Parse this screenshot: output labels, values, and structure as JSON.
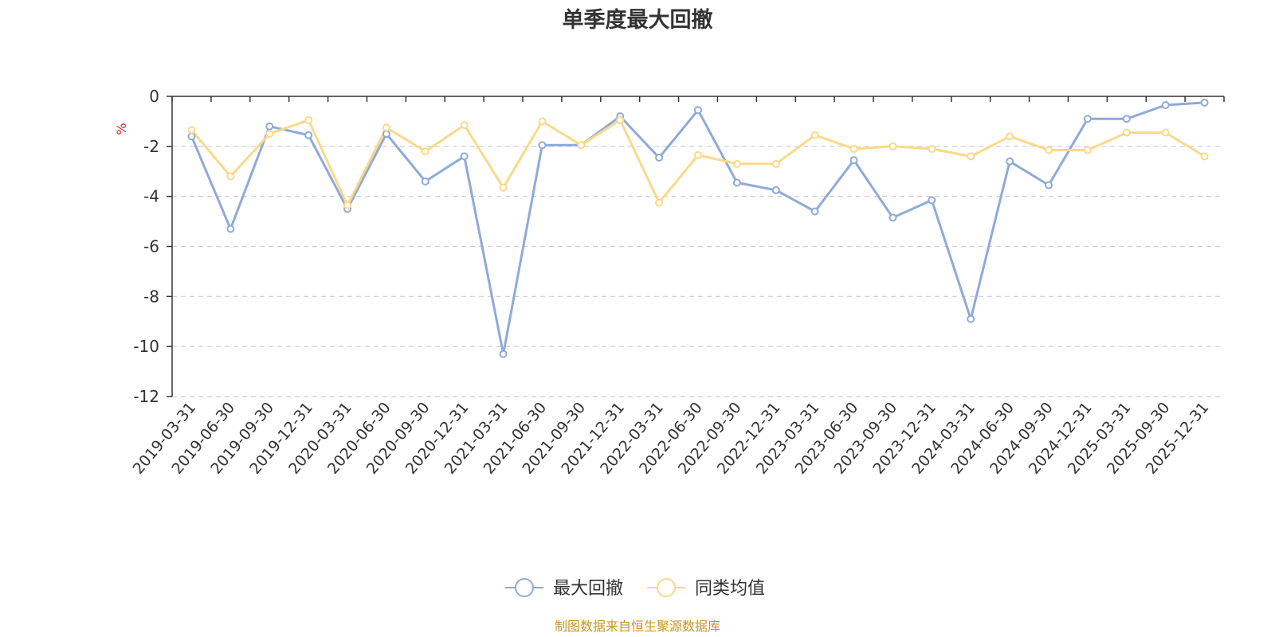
{
  "chart_data": {
    "type": "line",
    "title": "单季度最大回撤",
    "y_unit": "%",
    "ylim": [
      -12,
      0
    ],
    "y_ticks": [
      0,
      -2,
      -4,
      -6,
      -8,
      -10,
      -12
    ],
    "y_tick_labels": [
      "0",
      "-2",
      "-4",
      "-6",
      "-8",
      "-10",
      "-12"
    ],
    "grid": true,
    "legend_position": "bottom",
    "categories": [
      "2019-03-31",
      "2019-06-30",
      "2019-09-30",
      "2019-12-31",
      "2020-03-31",
      "2020-06-30",
      "2020-09-30",
      "2020-12-31",
      "2021-03-31",
      "2021-06-30",
      "2021-09-30",
      "2021-12-31",
      "2022-03-31",
      "2022-06-30",
      "2022-09-30",
      "2022-12-31",
      "2023-03-31",
      "2023-06-30",
      "2023-09-30",
      "2023-12-31",
      "2024-03-31",
      "2024-06-30",
      "2024-09-30",
      "2024-12-31",
      "2025-03-31",
      "2025-09-30",
      "2025-12-31"
    ],
    "series": [
      {
        "name": "最大回撤",
        "color": "#8eaad9",
        "values": [
          -1.6,
          -5.3,
          -1.2,
          -1.55,
          -4.5,
          -1.5,
          -3.4,
          -2.4,
          -10.3,
          -1.95,
          -1.95,
          -0.8,
          -2.45,
          -0.55,
          -3.45,
          -3.75,
          -4.6,
          -2.55,
          -4.85,
          -4.15,
          -8.9,
          -2.6,
          -3.55,
          -0.9,
          -0.9,
          -0.35,
          -0.25
        ]
      },
      {
        "name": "同类均值",
        "color": "#fad98a",
        "values": [
          -1.35,
          -3.2,
          -1.5,
          -0.95,
          -4.35,
          -1.25,
          -2.2,
          -1.15,
          -3.65,
          -1.0,
          -1.95,
          -0.95,
          -4.25,
          -2.35,
          -2.7,
          -2.7,
          -1.55,
          -2.1,
          -2.0,
          -2.1,
          -2.4,
          -1.6,
          -2.15,
          -2.15,
          -1.45,
          -1.45,
          -2.4
        ]
      }
    ]
  },
  "source_note": "制图数据来自恒生聚源数据库"
}
